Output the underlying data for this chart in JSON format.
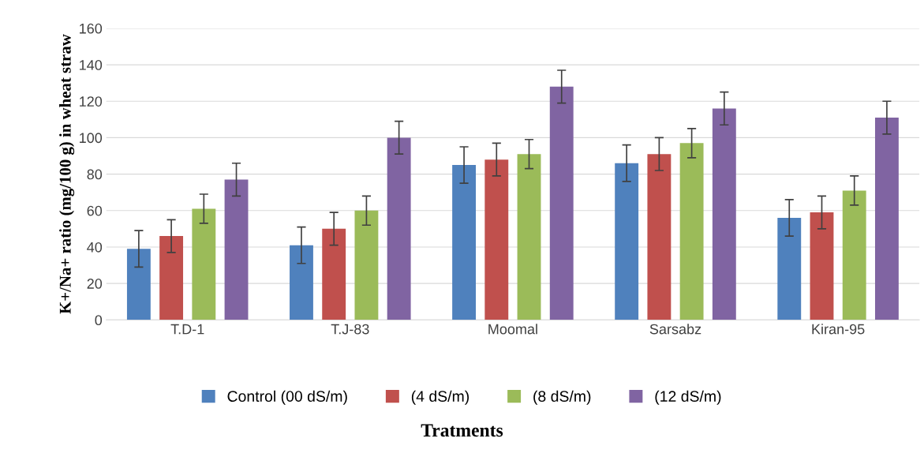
{
  "chart_data": {
    "type": "bar",
    "xlabel": "Tratments",
    "ylabel": "K+/Na+ ratio (mg/100 g) in wheat straw",
    "categories": [
      "T.D-1",
      "T.J-83",
      "Moomal",
      "Sarsabz",
      "Kiran-95"
    ],
    "series": [
      {
        "name": "Control (00 dS/m)",
        "color": "#4f81bd",
        "values": [
          39,
          41,
          85,
          86,
          56
        ],
        "errors": [
          10,
          10,
          10,
          10,
          10
        ]
      },
      {
        "name": "(4 dS/m)",
        "color": "#c0504d",
        "values": [
          46,
          50,
          88,
          91,
          59
        ],
        "errors": [
          9,
          9,
          9,
          9,
          9
        ]
      },
      {
        "name": "(8 dS/m)",
        "color": "#9bbb59",
        "values": [
          61,
          60,
          91,
          97,
          71
        ],
        "errors": [
          8,
          8,
          8,
          8,
          8
        ]
      },
      {
        "name": "(12 dS/m)",
        "color": "#8064a2",
        "values": [
          77,
          100,
          128,
          116,
          111
        ],
        "errors": [
          9,
          9,
          9,
          9,
          9
        ]
      }
    ],
    "ylim": [
      0,
      160
    ],
    "yticks": [
      0,
      20,
      40,
      60,
      80,
      100,
      120,
      140,
      160
    ],
    "grid": "y",
    "legend": "bottom"
  }
}
